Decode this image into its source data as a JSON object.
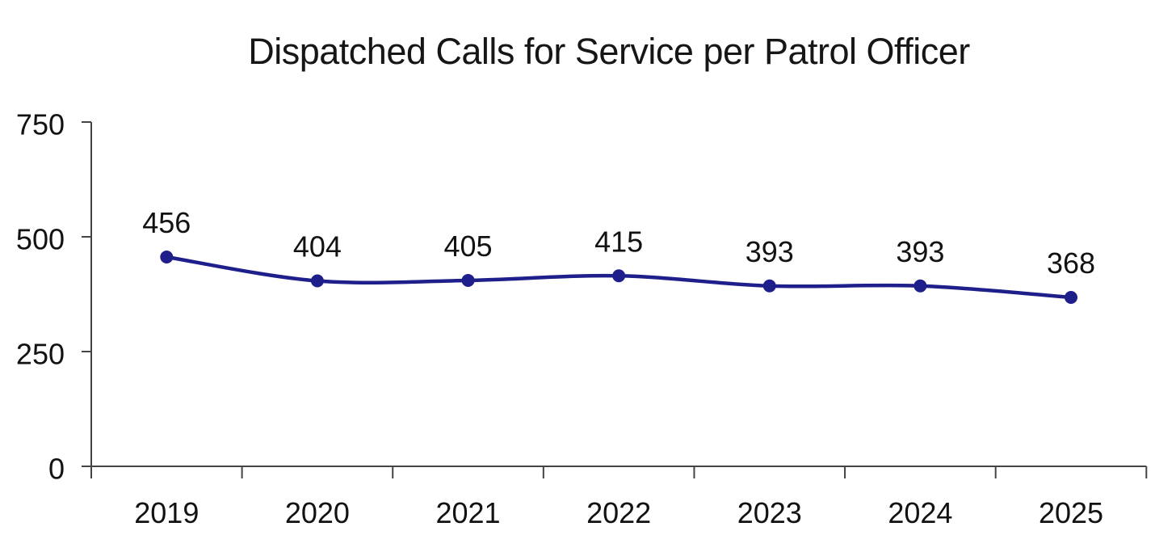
{
  "chart_data": {
    "type": "line",
    "title": "Dispatched Calls for Service per Patrol Officer",
    "categories": [
      "2019",
      "2020",
      "2021",
      "2022",
      "2023",
      "2024",
      "2025"
    ],
    "series": [
      {
        "name": "Dispatched Calls for Service per Patrol Officer",
        "values": [
          456,
          404,
          405,
          415,
          393,
          393,
          368
        ]
      }
    ],
    "data_labels": [
      "456",
      "404",
      "405",
      "415",
      "393",
      "393",
      "368"
    ],
    "xlabel": "",
    "ylabel": "",
    "ylim": [
      0,
      750
    ],
    "yticks": [
      0,
      250,
      500,
      750
    ],
    "grid": false,
    "legend": "none",
    "line_smoothed": true,
    "markers": true,
    "colors": {
      "line": "#1F1F8C",
      "marker": "#1F1F8C",
      "axis": "#444444",
      "tick_text": "#121212",
      "label_text": "#121212",
      "title_text": "#161616",
      "background": "#FFFFFF"
    }
  }
}
